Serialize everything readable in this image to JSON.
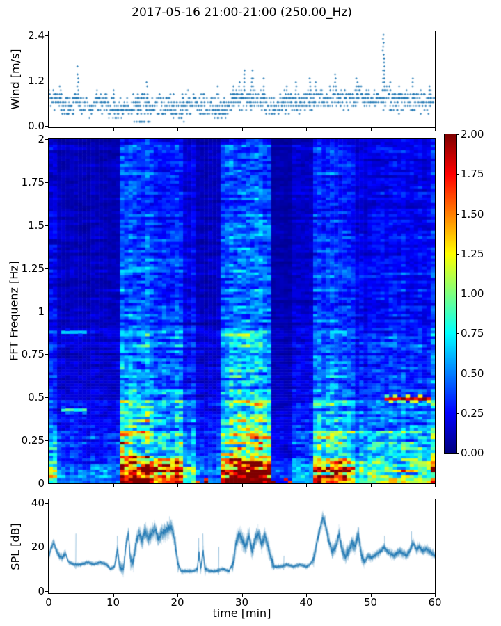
{
  "figure": {
    "title": "2017-05-16 21:00-21:00 (250.00_Hz)",
    "background": "#ffffff",
    "accent_blue": "#1f77b4",
    "xlabel": "time [min]"
  },
  "wind_plot": {
    "ylabel": "Wind [m/s]",
    "ytick_labels": [
      "0.0",
      "1.2",
      "2.4"
    ],
    "ytick_values": [
      0,
      1.2,
      2.4
    ],
    "ylim": [
      -0.04,
      2.51
    ],
    "xlim": [
      0,
      60
    ],
    "xtick_values": [
      0,
      10,
      20,
      30,
      40,
      50,
      60
    ]
  },
  "spectrogram_plot": {
    "ylabel": "FFT Frequenz [Hz]",
    "ytick_labels": [
      "0",
      "0.25",
      "0.5",
      "0.75",
      "1",
      "1.25",
      "1.5",
      "1.75",
      "2"
    ],
    "ytick_values": [
      0,
      0.25,
      0.5,
      0.75,
      1,
      1.25,
      1.5,
      1.75,
      2
    ],
    "ylim": [
      0,
      2
    ],
    "xlim": [
      0,
      60
    ],
    "xtick_values": [
      0,
      10,
      20,
      30,
      40,
      50,
      60
    ]
  },
  "colorbar": {
    "tick_labels": [
      "0.00",
      "0.25",
      "0.50",
      "0.75",
      "1.00",
      "1.25",
      "1.50",
      "1.75",
      "2.00"
    ],
    "tick_values": [
      0,
      0.25,
      0.5,
      0.75,
      1,
      1.25,
      1.5,
      1.75,
      2
    ],
    "vmin": 0,
    "vmax": 2,
    "colormap": "jet"
  },
  "spl_plot": {
    "ylabel": "SPL [dB]",
    "ytick_labels": [
      "0",
      "20",
      "40"
    ],
    "ytick_values": [
      0,
      20,
      40
    ],
    "ylim": [
      -1,
      41.5
    ],
    "xlim": [
      0,
      60
    ],
    "xtick_labels": [
      "0",
      "10",
      "20",
      "30",
      "40",
      "50",
      "60"
    ],
    "xtick_values": [
      0,
      10,
      20,
      30,
      40,
      50,
      60
    ]
  },
  "chart_data": [
    {
      "type": "scatter",
      "name": "wind",
      "title": "2017-05-16 21:00-21:00 (250.00_Hz)",
      "ylabel": "Wind [m/s]",
      "xlabel": "time [min]",
      "x_range_min": [
        0,
        60
      ],
      "y_range_ms": [
        0,
        2.4
      ],
      "marker": "plus",
      "color": "#1f77b4",
      "quantization_ms": 0.105,
      "minute_mean_ms": [
        0.72,
        0.68,
        0.55,
        0.52,
        0.62,
        0.55,
        0.5,
        0.58,
        0.62,
        0.52,
        0.42,
        0.48,
        0.45,
        0.55,
        0.62,
        0.58,
        0.5,
        0.6,
        0.55,
        0.5,
        0.52,
        0.62,
        0.58,
        0.55,
        0.58,
        0.52,
        0.48,
        0.52,
        0.62,
        0.72,
        0.75,
        0.7,
        0.65,
        0.6,
        0.55,
        0.52,
        0.58,
        0.62,
        0.58,
        0.62,
        0.65,
        0.7,
        0.68,
        0.72,
        0.75,
        0.7,
        0.68,
        0.72,
        0.78,
        0.7,
        0.65,
        0.72,
        0.8,
        0.68,
        0.62,
        0.66,
        0.62,
        0.66,
        0.62,
        0.66
      ],
      "spikes_t_max": [
        [
          0.9,
          1.2
        ],
        [
          1.8,
          1.1
        ],
        [
          4.5,
          1.6
        ],
        [
          10.2,
          0.95
        ],
        [
          13.8,
          1.0
        ],
        [
          15.3,
          1.25
        ],
        [
          20.8,
          0.95
        ],
        [
          26.3,
          1.05
        ],
        [
          28.6,
          1.15
        ],
        [
          29.6,
          1.3
        ],
        [
          30.4,
          1.5
        ],
        [
          31.6,
          1.5
        ],
        [
          33.4,
          1.3
        ],
        [
          36.9,
          1.1
        ],
        [
          38.4,
          1.25
        ],
        [
          40.6,
          1.3
        ],
        [
          41.5,
          1.2
        ],
        [
          44.6,
          1.55
        ],
        [
          46.0,
          1.1
        ],
        [
          47.9,
          1.3
        ],
        [
          52.0,
          2.4
        ],
        [
          53.0,
          1.2
        ],
        [
          54.4,
          1.05
        ],
        [
          56.5,
          1.3
        ],
        [
          59.2,
          1.15
        ]
      ],
      "low_clusters": [
        [
          13.2,
          15.8,
          0.1
        ],
        [
          20.2,
          21.2,
          0.18
        ],
        [
          25.8,
          27.6,
          0.22
        ]
      ]
    },
    {
      "type": "heatmap",
      "name": "spectrogram",
      "ylabel": "FFT Frequenz [Hz]",
      "colormap": "jet",
      "vmin": 0,
      "vmax": 2,
      "x_range_min": [
        0,
        60
      ],
      "y_range_hz": [
        0,
        2
      ],
      "grid_cols": 92,
      "grid_rows": 124,
      "time_bands_t0_t1_intensity": [
        [
          0,
          1.6,
          0.55
        ],
        [
          1.6,
          11.3,
          0.28
        ],
        [
          11.3,
          16.2,
          1.0
        ],
        [
          16.2,
          21.0,
          0.78
        ],
        [
          21.0,
          22.8,
          0.5
        ],
        [
          22.8,
          27.0,
          0.3
        ],
        [
          27.0,
          34.6,
          1.0
        ],
        [
          34.6,
          38.0,
          0.22
        ],
        [
          38.0,
          41.2,
          0.35
        ],
        [
          41.2,
          47.6,
          0.8
        ],
        [
          47.6,
          51.2,
          0.5
        ],
        [
          51.2,
          59.2,
          0.6
        ],
        [
          59.2,
          60.0,
          0.75
        ]
      ],
      "freq_profile_fmax_gain": [
        [
          0.033,
          2.6
        ],
        [
          0.1,
          1.75
        ],
        [
          0.16,
          1.45
        ],
        [
          0.3,
          1.2
        ],
        [
          0.55,
          0.85
        ],
        [
          0.9,
          0.6
        ],
        [
          1.4,
          0.5
        ],
        [
          2.01,
          0.44
        ]
      ],
      "line_features_f_t0_t1_value": [
        [
          0.5,
          52.3,
          58.5,
          1.95
        ],
        [
          0.43,
          2.3,
          4.6,
          0.85
        ],
        [
          0.88,
          2.3,
          4.6,
          0.6
        ]
      ]
    },
    {
      "type": "line",
      "name": "spl",
      "ylabel": "SPL [dB]",
      "xlabel": "time [min]",
      "color": "#1f77b4",
      "x_range_min": [
        0,
        60
      ],
      "y_range_db": [
        0,
        40
      ],
      "profile_t_db": [
        [
          0,
          15
        ],
        [
          0.3,
          19
        ],
        [
          0.8,
          22
        ],
        [
          1.1,
          19
        ],
        [
          1.6,
          16
        ],
        [
          2.1,
          15
        ],
        [
          2.6,
          17
        ],
        [
          3.1,
          13
        ],
        [
          4,
          12
        ],
        [
          5,
          12
        ],
        [
          6,
          13
        ],
        [
          7,
          12
        ],
        [
          8,
          13
        ],
        [
          9,
          12
        ],
        [
          9.6,
          10
        ],
        [
          10.2,
          11
        ],
        [
          10.7,
          19
        ],
        [
          11,
          11
        ],
        [
          11.6,
          10
        ],
        [
          12.1,
          23
        ],
        [
          12.4,
          26
        ],
        [
          12.7,
          14
        ],
        [
          13.1,
          13
        ],
        [
          13.6,
          22
        ],
        [
          14,
          26
        ],
        [
          14.5,
          23
        ],
        [
          15,
          27
        ],
        [
          15.5,
          24
        ],
        [
          16,
          26
        ],
        [
          16.5,
          28
        ],
        [
          17,
          24
        ],
        [
          17.5,
          26
        ],
        [
          18,
          27
        ],
        [
          18.5,
          28
        ],
        [
          19,
          29
        ],
        [
          19.4,
          26
        ],
        [
          19.7,
          20
        ],
        [
          20.1,
          12
        ],
        [
          20.6,
          9
        ],
        [
          21.5,
          9
        ],
        [
          22.5,
          9
        ],
        [
          23.1,
          10
        ],
        [
          23.35,
          17
        ],
        [
          23.6,
          10
        ],
        [
          24,
          18
        ],
        [
          24.25,
          10
        ],
        [
          25,
          9
        ],
        [
          26,
          9
        ],
        [
          27,
          10
        ],
        [
          28,
          9
        ],
        [
          28.7,
          13
        ],
        [
          29.1,
          22
        ],
        [
          29.6,
          26
        ],
        [
          30.1,
          23
        ],
        [
          30.6,
          20
        ],
        [
          31.1,
          25
        ],
        [
          31.6,
          18
        ],
        [
          32.1,
          24
        ],
        [
          32.6,
          26
        ],
        [
          33.1,
          21
        ],
        [
          33.6,
          25
        ],
        [
          34.1,
          20
        ],
        [
          34.6,
          14
        ],
        [
          35.1,
          11
        ],
        [
          36,
          11
        ],
        [
          37,
          12
        ],
        [
          38,
          11
        ],
        [
          39,
          12
        ],
        [
          40,
          11
        ],
        [
          40.6,
          12
        ],
        [
          41.2,
          15
        ],
        [
          41.8,
          24
        ],
        [
          42.3,
          30
        ],
        [
          42.6,
          33
        ],
        [
          43,
          30
        ],
        [
          43.5,
          23
        ],
        [
          44,
          18
        ],
        [
          44.6,
          20
        ],
        [
          45.1,
          26
        ],
        [
          45.6,
          18
        ],
        [
          46.1,
          16
        ],
        [
          46.6,
          18
        ],
        [
          47.1,
          22
        ],
        [
          47.6,
          20
        ],
        [
          48.1,
          26
        ],
        [
          48.6,
          16
        ],
        [
          49.1,
          13
        ],
        [
          49.6,
          16
        ],
        [
          50.1,
          15
        ],
        [
          50.6,
          16
        ],
        [
          51.1,
          17
        ],
        [
          51.6,
          18
        ],
        [
          52.1,
          20
        ],
        [
          52.6,
          18
        ],
        [
          53.1,
          17
        ],
        [
          53.6,
          16
        ],
        [
          54.1,
          17
        ],
        [
          54.6,
          18
        ],
        [
          55.1,
          17
        ],
        [
          55.6,
          16
        ],
        [
          56.1,
          18
        ],
        [
          56.6,
          22
        ],
        [
          57.1,
          19
        ],
        [
          57.6,
          20
        ],
        [
          58.1,
          18
        ],
        [
          58.6,
          19
        ],
        [
          59.1,
          18
        ],
        [
          59.6,
          17
        ],
        [
          60,
          16
        ]
      ],
      "noise_amp_t0_t1_amp": [
        [
          0,
          2.6,
          2.5
        ],
        [
          10.3,
          12.7,
          4
        ],
        [
          12.7,
          20.2,
          5.5
        ],
        [
          20.2,
          23,
          1.5
        ],
        [
          23,
          24.5,
          3.5
        ],
        [
          24.5,
          28.5,
          1.5
        ],
        [
          28.5,
          35,
          5.5
        ],
        [
          35,
          41,
          1.5
        ],
        [
          41,
          44,
          4.5
        ],
        [
          44,
          49,
          5
        ],
        [
          49,
          53,
          2.6
        ],
        [
          53,
          60,
          3
        ]
      ],
      "noise_amp_default": 1.5,
      "spikes_t_db": [
        [
          4.2,
          26
        ],
        [
          10.7,
          25
        ],
        [
          23.3,
          24
        ],
        [
          24,
          26
        ],
        [
          26.4,
          20
        ],
        [
          36.5,
          16
        ],
        [
          45.2,
          29
        ],
        [
          48.1,
          29
        ],
        [
          52.2,
          25
        ],
        [
          56.4,
          27
        ]
      ]
    }
  ]
}
